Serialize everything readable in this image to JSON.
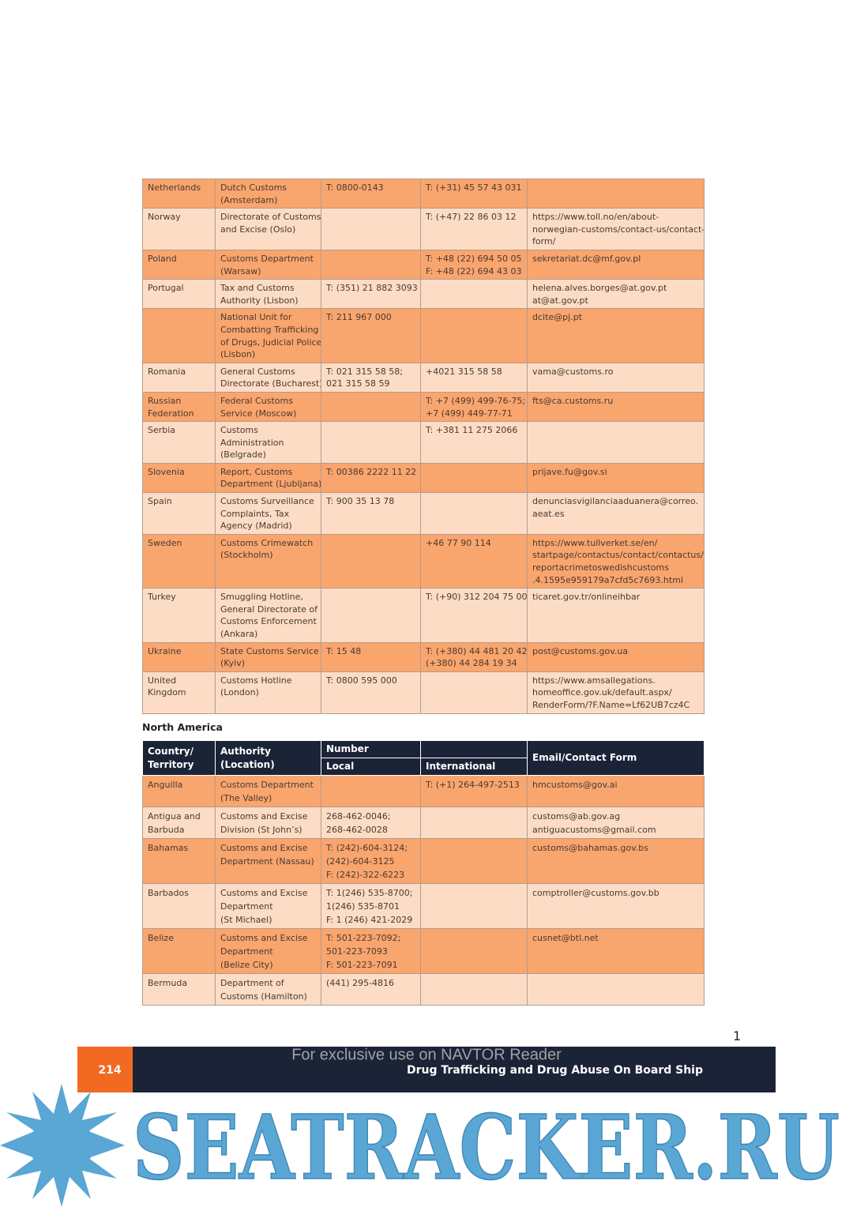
{
  "europe_table": {
    "rows": [
      [
        [
          "Netherlands"
        ],
        [
          "Dutch Customs",
          "(Amsterdam)"
        ],
        [
          "T: 0800-0143"
        ],
        [
          "T: (+31) 45 57 43 031"
        ],
        null
      ],
      [
        [
          "Norway"
        ],
        [
          "Directorate of Customs",
          "and Excise (Oslo)"
        ],
        null,
        [
          "T: (+47) 22 86 03 12"
        ],
        [
          "https://www.toll.no/en/about-",
          "norwegian-customs/contact-us/contact-",
          "form/"
        ]
      ],
      [
        [
          "Poland"
        ],
        [
          "Customs Department",
          "(Warsaw)"
        ],
        null,
        [
          "T: +48 (22) 694 50 05",
          "F: +48 (22) 694 43 03"
        ],
        [
          "sekretariat.dc@mf.gov.pl"
        ]
      ],
      [
        [
          "Portugal"
        ],
        [
          "Tax and Customs",
          "Authority (Lisbon)"
        ],
        [
          "T: (351) 21 882 3093"
        ],
        null,
        [
          "helena.alves.borges@at.gov.pt",
          "at@at.gov.pt"
        ]
      ],
      [
        null,
        [
          "National Unit for",
          "Combatting Trafficking",
          "of Drugs, Judicial Police",
          "(Lisbon)"
        ],
        [
          "T: 211 967 000"
        ],
        null,
        [
          "dcite@pj.pt"
        ]
      ],
      [
        [
          "Romania"
        ],
        [
          "General Customs",
          "Directorate (Bucharest)"
        ],
        [
          "T: 021 315 58 58;",
          "021 315 58 59"
        ],
        [
          "+4021 315 58 58"
        ],
        [
          "vama@customs.ro"
        ]
      ],
      [
        [
          "Russian",
          "Federation"
        ],
        [
          "Federal Customs",
          "Service (Moscow)"
        ],
        null,
        [
          "T: +7 (499) 499-76-75;",
          "+7 (499) 449-77-71"
        ],
        [
          "fts@ca.customs.ru"
        ]
      ],
      [
        [
          "Serbia"
        ],
        [
          "Customs",
          "Administration",
          "(Belgrade)"
        ],
        null,
        [
          "T: +381 11 275 2066"
        ],
        null
      ],
      [
        [
          "Slovenia"
        ],
        [
          "Report, Customs",
          "Department (Ljubljana)"
        ],
        [
          "T: 00386 2222 11 22"
        ],
        null,
        [
          "prijave.fu@gov.si"
        ]
      ],
      [
        [
          "Spain"
        ],
        [
          "Customs Surveillance",
          "Complaints, Tax",
          "Agency (Madrid)"
        ],
        [
          "T: 900 35 13 78"
        ],
        null,
        [
          "denunciasvigilanciaaduanera@correo.",
          "aeat.es"
        ]
      ],
      [
        [
          "Sweden"
        ],
        [
          "Customs Crimewatch",
          "(Stockholm)"
        ],
        null,
        [
          "+46 77 90 114"
        ],
        [
          "https://www.tullverket.se/en/",
          "startpage/contactus/contact/contactus/",
          "reportacrimetoswedishcustoms",
          ".4.1595e959179a7cfd5c7693.html"
        ]
      ],
      [
        [
          "Turkey"
        ],
        [
          "Smuggling Hotline,",
          "General Directorate of",
          "Customs Enforcement",
          "(Ankara)"
        ],
        null,
        [
          "T: (+90) 312 204 75 00"
        ],
        [
          "ticaret.gov.tr/onlineihbar"
        ]
      ],
      [
        [
          "Ukraine"
        ],
        [
          "State Customs Service",
          "(Kyiv)"
        ],
        [
          "T: 15 48"
        ],
        [
          "T: (+380) 44 481 20 42;",
          "(+380) 44 284 19 34"
        ],
        [
          "post@customs.gov.ua"
        ]
      ],
      [
        [
          "United",
          "Kingdom"
        ],
        [
          "Customs Hotline",
          "(London)"
        ],
        [
          "T: 0800 595 000"
        ],
        null,
        [
          "https://www.amsallegations.",
          "homeoffice.gov.uk/default.aspx/",
          "RenderForm/?F.Name=Lf62UB7cz4C"
        ]
      ]
    ]
  },
  "section_title": "North America",
  "north_america_table": {
    "header": {
      "country": [
        "Country/",
        "Territory"
      ],
      "authority": "Authority (Location)",
      "number": "Number",
      "local": "Local",
      "international": "International",
      "email": "Email/Contact Form"
    },
    "rows": [
      [
        [
          "Anguilla"
        ],
        [
          "Customs Department",
          "(The Valley)"
        ],
        null,
        [
          "T: (+1) 264-497-2513"
        ],
        [
          "hmcustoms@gov.ai"
        ]
      ],
      [
        [
          "Antigua and",
          "Barbuda"
        ],
        [
          "Customs and Excise",
          "Division (St John’s)"
        ],
        [
          "268-462-0046;",
          "268-462-0028"
        ],
        null,
        [
          "customs@ab.gov.ag",
          "antiguacustoms@gmail.com"
        ]
      ],
      [
        [
          "Bahamas"
        ],
        [
          "Customs and Excise",
          "Department (Nassau)"
        ],
        [
          "T: (242)-604-3124;",
          "(242)-604-3125",
          "F: (242)-322-6223"
        ],
        null,
        [
          "customs@bahamas.gov.bs"
        ]
      ],
      [
        [
          "Barbados"
        ],
        [
          "Customs and Excise",
          "Department",
          "(St Michael)"
        ],
        [
          "T: 1(246) 535-8700;",
          "1(246) 535-8701",
          "F: 1 (246) 421-2029"
        ],
        null,
        [
          "comptroller@customs.gov.bb"
        ]
      ],
      [
        [
          "Belize"
        ],
        [
          "Customs and Excise",
          "Department",
          "(Belize City)"
        ],
        [
          "T: 501-223-7092;",
          "501-223-7093",
          "F: 501-223-7091"
        ],
        null,
        [
          "cusnet@btl.net"
        ]
      ],
      [
        [
          "Bermuda"
        ],
        [
          "Department of",
          "Customs (Hamilton)"
        ],
        [
          "(441) 295-4816"
        ],
        null,
        null
      ]
    ]
  },
  "page_marker": "1",
  "footer": {
    "page_number": "214",
    "title": "Drug Trafficking and Drug Abuse On Board Ship",
    "watermark": "For exclusive use on NAVTOR Reader"
  },
  "logo": {
    "text": "SEATRACKER.RU"
  }
}
